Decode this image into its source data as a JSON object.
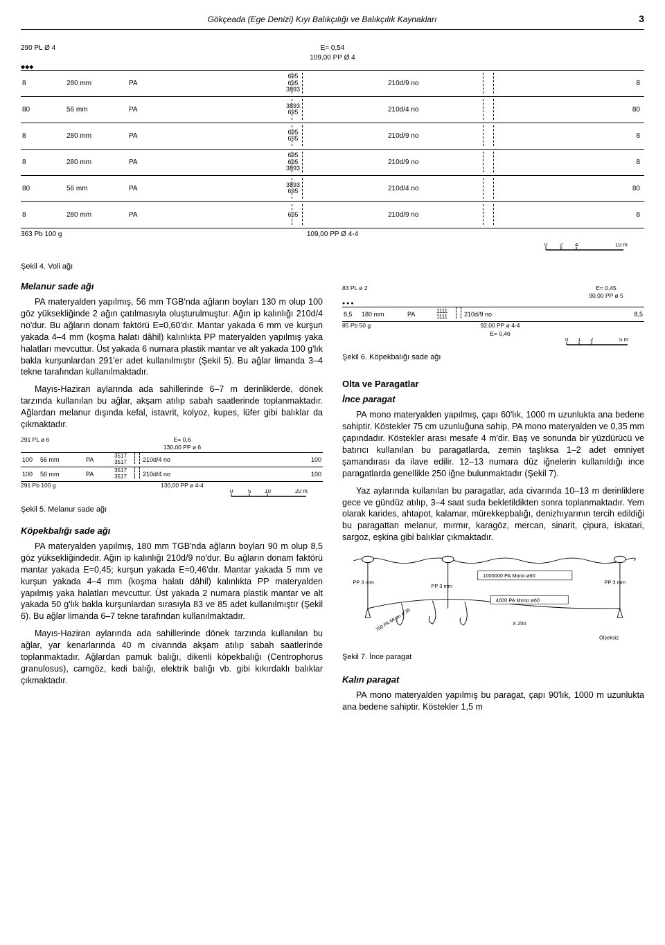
{
  "header": {
    "title": "Gökçeada (Ege Denizi) Kıyı Balıkçılığı ve Balıkçılık Kaynakları",
    "page": "3"
  },
  "main_net": {
    "type": "net-diagram",
    "top_left": "290 PL Ø 4",
    "top_center": "E= 0,54\n109,00 PP Ø 4",
    "bullets": "◆◆◆",
    "rows": [
      {
        "edge_l": "8",
        "mesh": "280 mm",
        "mat": "PA",
        "mid": "695\n695\n3893",
        "thread": "210d/9 no",
        "edge_r": "8"
      },
      {
        "edge_l": "80",
        "mesh": "56 mm",
        "mat": "PA",
        "mid": "3893\n695",
        "thread": "210d/4 no",
        "edge_r": "80"
      },
      {
        "edge_l": "8",
        "mesh": "280 mm",
        "mat": "PA",
        "mid": "695\n695",
        "thread": "210d/9 no",
        "edge_r": "8"
      },
      {
        "edge_l": "8",
        "mesh": "280 mm",
        "mat": "PA",
        "mid": "695\n695\n3893",
        "thread": "210d/9 no",
        "edge_r": "8"
      },
      {
        "edge_l": "80",
        "mesh": "56 mm",
        "mat": "PA",
        "mid": "3893\n695",
        "thread": "210d/4 no",
        "edge_r": "80"
      },
      {
        "edge_l": "8",
        "mesh": "280 mm",
        "mat": "PA",
        "mid": "695",
        "thread": "210d/9 no",
        "edge_r": "8"
      }
    ],
    "bottom_left": "363 Pb 100 g",
    "bottom_center": "109,00 PP Ø 4-4",
    "scale": {
      "ticks": [
        "0",
        "2",
        "4"
      ],
      "label": "10 m"
    }
  },
  "caption4": "Şekil 4. Voli ağı",
  "melanur": {
    "heading": "Melanur sade ağı",
    "p1": "PA materyalden yapılmış, 56 mm TGB'nda ağların boyları 130 m olup 100 göz yüksekliğinde 2 ağın çatılmasıyla oluşturulmuştur. Ağın ip kalınlığı 210d/4 no'dur. Bu ağların donam faktörü E=0,60'dır. Mantar yakada 6 mm ve kurşun yakada 4–4 mm (koşma halatı dâhil) kalınlıkta PP materyalden yapılmış yaka halatları mevcuttur. Üst yakada 6 numara plastik mantar ve alt yakada 100 g'lık bakla kurşunlardan 291'er adet kullanılmıştır (Şekil 5). Bu ağlar limanda 3–4 tekne tarafından kullanılmaktadır.",
    "p2": "Mayıs-Haziran aylarında ada sahillerinde 6–7 m derinliklerde, dönek tarzında kullanılan bu ağlar, akşam atılıp sabah saatlerinde toplanmaktadır. Ağlardan melanur dışında kefal, istavrit, kolyoz, kupes, lüfer gibi balıklar da çıkmaktadır."
  },
  "mini_net5": {
    "type": "net-diagram",
    "top_left": "291 PL ø 6",
    "top_center": "E= 0,6\n130,00 PP ø 6",
    "rows": [
      {
        "edge_l": "100",
        "mesh": "56 mm",
        "mat": "PA",
        "mid": "3517\n3517",
        "thread": "210d/4 no",
        "edge_r": "100"
      },
      {
        "edge_l": "100",
        "mesh": "56 mm",
        "mat": "PA",
        "mid": "3517\n3517",
        "thread": "210d/4 no",
        "edge_r": "100"
      }
    ],
    "bottom_left": "291 Pb 100 g",
    "bottom_center": "130,00 PP ø 4-4",
    "scale": {
      "ticks": [
        "0",
        "5",
        "10"
      ],
      "label": "20 m"
    }
  },
  "caption5": "Şekil 5. Melanur sade ağı",
  "kopek": {
    "heading": "Köpekbalığı sade ağı",
    "p1": "PA materyalden yapılmış, 180 mm TGB'nda ağların boyları 90 m olup 8,5 göz yüksekliğindedir. Ağın ip kalınlığı 210d/9 no'dur. Bu ağların donam faktörü mantar yakada E=0,45; kurşun yakada E=0,46'dır. Mantar yakada 5 mm ve kurşun yakada 4–4 mm (koşma halatı dâhil) kalınlıkta PP materyalden yapılmış yaka halatları mevcuttur. Üst yakada 2 numara plastik mantar ve alt yakada 50 g'lık bakla kurşunlardan sırasıyla 83 ve 85 adet kullanılmıştır (Şekil 6). Bu ağlar limanda 6–7 tekne tarafından kullanılmaktadır.",
    "p2": "Mayıs-Haziran aylarında ada sahillerinde dönek tarzında kullanılan bu ağlar, yar kenarlarında 40 m civarında akşam atılıp sabah saatlerinde toplanmaktadır. Ağlardan pamuk balığı, dikenli köpekbalığı (Centrophorus granulosus), camgöz, kedi balığı, elektrik balığı vb. gibi kıkırdaklı balıklar çıkmaktadır."
  },
  "mini_net6": {
    "type": "net-diagram",
    "top_left": "83 PL ø 2",
    "top_right": "E= 0,45\n90,00 PP ø 5",
    "rows": [
      {
        "edge_l": "8,5",
        "mesh": "180 mm",
        "mat": "PA",
        "mid": "1111\n1111",
        "thread": "210d/9 no",
        "edge_r": "8,5"
      }
    ],
    "bottom_left": "85 Pb 50 g",
    "bottom_center": "92,00 PP ø 4-4\nE= 0,46",
    "scale": {
      "ticks": [
        "0",
        "1",
        "2"
      ],
      "label": "5 m"
    }
  },
  "caption6": "Şekil 6. Köpekbalığı sade ağı",
  "olta_h": "Olta ve Paragatlar",
  "ince": {
    "heading": "İnce paragat",
    "p1": "PA mono materyalden yapılmış, çapı 60'lık, 1000 m uzunlukta ana bedene sahiptir. Köstekler 75 cm uzunluğuna sahip, PA mono materyalden ve 0,35 mm çapındadır. Köstekler arası mesafe 4 m'dir. Baş ve sonunda bir yüzdürücü ve batırıcı kullanılan bu paragatlarda, zemin taşlıksa 1–2 adet emniyet şamandırası da ilave edilir. 12–13 numara düz iğnelerin kullanıldığı ince paragatlarda genellikle 250 iğne bulunmaktadır (Şekil 7).",
    "p2": "Yaz aylarında kullanılan bu paragatlar, ada civarında 10–13 m derinliklere gece ve gündüz atılıp, 3–4 saat suda bekletildikten sonra toplanmaktadır. Yem olarak karides, ahtapot, kalamar, mürekkepbalığı, denizhıyarının tercih edildiği bu paragattan melanur, mırmır, karagöz, mercan, sinarit, çipura, iskatari, sargoz, eşkina gibi balıklar çıkmaktadır."
  },
  "paragat_labels": {
    "pp": "PP 3 mm",
    "mainline": "1000000 PA Mono ø60",
    "bottomline": "4000 PA Mono ø60",
    "branch": "750 PA Mono ø 35",
    "hooks": "X 250",
    "scale": "Ölçeksiz"
  },
  "caption7": "Şekil 7. İnce paragat",
  "kalin": {
    "heading": "Kalın paragat",
    "p1": "PA mono materyalden yapılmış bu paragat, çapı 90'lık, 1000 m uzunlukta ana bedene sahiptir. Köstekler 1,5 m"
  },
  "colors": {
    "text": "#000000",
    "bg": "#ffffff",
    "line": "#000000"
  }
}
